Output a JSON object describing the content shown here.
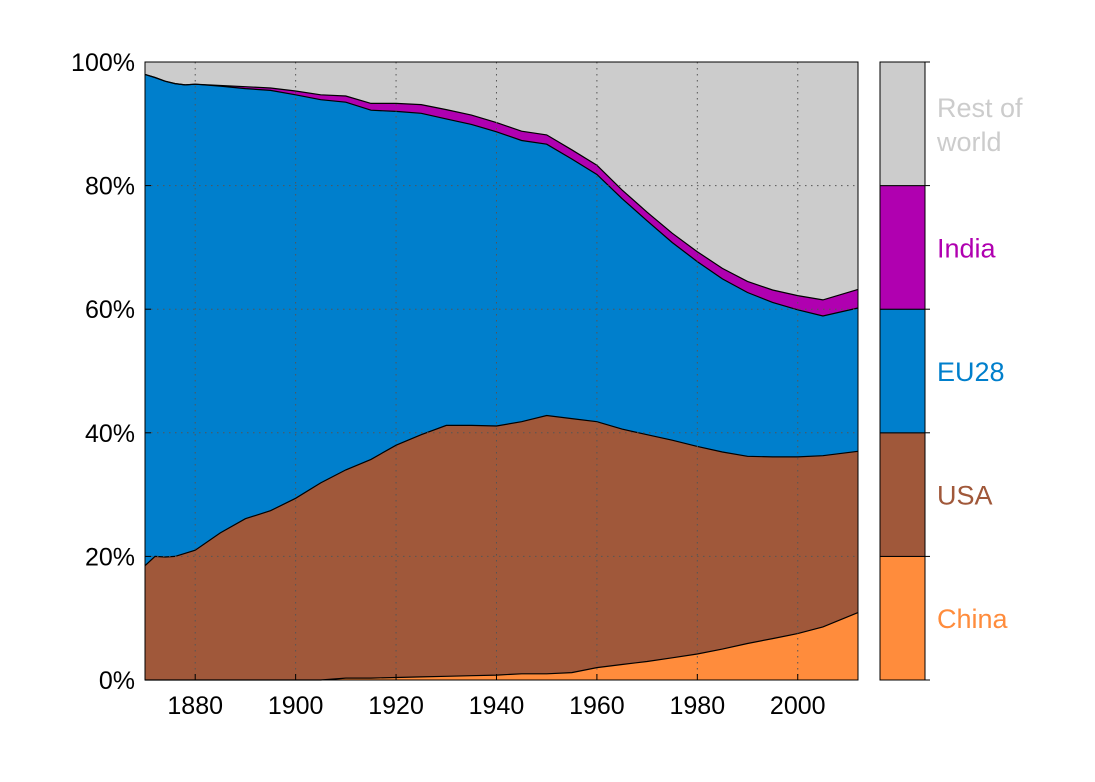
{
  "chart_data": {
    "type": "area",
    "stacked": true,
    "normalized": true,
    "x_range": [
      1870,
      2012
    ],
    "ylim": [
      0,
      100
    ],
    "x_ticks": [
      1880,
      1900,
      1920,
      1940,
      1960,
      1980,
      2000
    ],
    "x_tick_labels": [
      "1880",
      "1900",
      "1920",
      "1940",
      "1960",
      "1980",
      "2000"
    ],
    "y_ticks": [
      0,
      20,
      40,
      60,
      80,
      100
    ],
    "y_tick_labels": [
      "0%",
      "20%",
      "40%",
      "60%",
      "80%",
      "100%"
    ],
    "grid": true,
    "legend_position": "right",
    "x": [
      1870,
      1872,
      1874,
      1876,
      1878,
      1880,
      1885,
      1890,
      1895,
      1900,
      1905,
      1910,
      1915,
      1920,
      1925,
      1930,
      1935,
      1940,
      1945,
      1950,
      1955,
      1960,
      1965,
      1970,
      1975,
      1980,
      1985,
      1990,
      1995,
      2000,
      2005,
      2012
    ],
    "series": [
      {
        "name": "China",
        "color": "#ff8c3c",
        "values": [
          0,
          0,
          0,
          0,
          0,
          0,
          0,
          0,
          0,
          0,
          0,
          0.3,
          0.3,
          0.4,
          0.5,
          0.6,
          0.7,
          0.8,
          1.0,
          1.0,
          1.2,
          2.0,
          2.5,
          3.0,
          3.6,
          4.2,
          5.0,
          5.9,
          6.7,
          7.5,
          8.6,
          10.9
        ]
      },
      {
        "name": "USA",
        "color": "#a0583a",
        "values": [
          18.5,
          20.0,
          19.9,
          20.0,
          20.5,
          21.0,
          23.8,
          26.1,
          27.4,
          29.4,
          31.9,
          33.7,
          35.4,
          37.6,
          39.2,
          40.6,
          40.5,
          40.3,
          40.8,
          41.8,
          41.1,
          39.8,
          38.1,
          36.7,
          35.2,
          33.6,
          31.9,
          30.3,
          29.4,
          28.6,
          27.7,
          26.1
        ]
      },
      {
        "name": "EU28",
        "color": "#007fcc",
        "values": [
          79.5,
          77.5,
          77.0,
          76.5,
          75.8,
          75.4,
          72.3,
          69.6,
          68.0,
          65.3,
          62.0,
          59.5,
          56.5,
          54.0,
          52.0,
          49.6,
          48.7,
          47.6,
          45.5,
          43.9,
          42.0,
          40.0,
          37.3,
          34.6,
          32.0,
          29.9,
          28.0,
          26.5,
          25.0,
          23.8,
          22.6,
          23.2
        ]
      },
      {
        "name": "India",
        "color": "#b000b0",
        "values": [
          0,
          0,
          0,
          0,
          0,
          0,
          0.1,
          0.3,
          0.4,
          0.6,
          0.8,
          1.0,
          1.1,
          1.3,
          1.4,
          1.5,
          1.5,
          1.5,
          1.5,
          1.5,
          1.5,
          1.5,
          1.4,
          1.4,
          1.5,
          1.6,
          1.7,
          1.8,
          2.0,
          2.3,
          2.6,
          3.0
        ]
      },
      {
        "name": "Rest of world",
        "color": "#cccccc",
        "values": [
          2.0,
          2.5,
          3.1,
          3.5,
          3.7,
          3.6,
          3.8,
          4.0,
          4.2,
          4.7,
          5.3,
          5.5,
          6.7,
          6.7,
          6.9,
          7.7,
          8.6,
          9.8,
          11.2,
          11.8,
          14.2,
          16.7,
          20.7,
          24.3,
          27.7,
          30.7,
          33.4,
          35.5,
          36.9,
          37.8,
          38.5,
          36.8
        ]
      }
    ]
  },
  "legend": [
    {
      "label": "China",
      "color": "#ff8c3c"
    },
    {
      "label": "USA",
      "color": "#a0583a"
    },
    {
      "label": "EU28",
      "color": "#007fcc"
    },
    {
      "label": "India",
      "color": "#b000b0"
    },
    {
      "label": "Rest of\nworld",
      "color": "#cccccc"
    }
  ]
}
